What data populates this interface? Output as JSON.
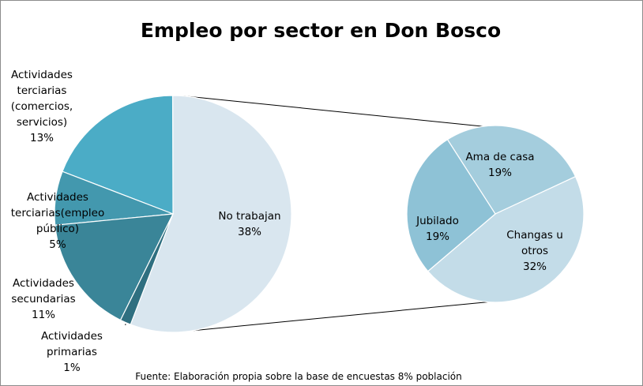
{
  "chart_data": {
    "type": "pie",
    "subtype": "pie-of-pie",
    "title": "Empleo por sector en Don Bosco",
    "source": "Fuente: Elaboración propia  sobre la base de encuestas 8% población",
    "main_pie": {
      "slices": [
        {
          "label_lines": [
            "No trabajan"
          ],
          "value_text": "38%",
          "value": 38,
          "color": "#d9e6ef"
        },
        {
          "label_lines": [
            "Actividades",
            "terciarias",
            "(comercios,",
            "servicios)"
          ],
          "value_text": "13%",
          "value": 13,
          "color": "#4bacc6"
        },
        {
          "label_lines": [
            "Actividades",
            "terciarias(empleo",
            "público)"
          ],
          "value_text": "5%",
          "value": 5,
          "color": "#4398ae"
        },
        {
          "label_lines": [
            "Actividades",
            "secundarias"
          ],
          "value_text": "11%",
          "value": 11,
          "color": "#3a8598"
        },
        {
          "label_lines": [
            "Actividades",
            "primarias"
          ],
          "value_text": "1%",
          "value": 1,
          "color": "#2f6f80"
        }
      ]
    },
    "secondary_pie": {
      "slices": [
        {
          "label_lines": [
            "Ama de casa"
          ],
          "value_text": "19%",
          "value": 19,
          "color": "#a4cddd"
        },
        {
          "label_lines": [
            "Changas u",
            "otros"
          ],
          "value_text": "32%",
          "value": 32,
          "color": "#c3dce8"
        },
        {
          "label_lines": [
            "Jubilado"
          ],
          "value_text": "19%",
          "value": 19,
          "color": "#8ec2d6"
        }
      ]
    }
  }
}
